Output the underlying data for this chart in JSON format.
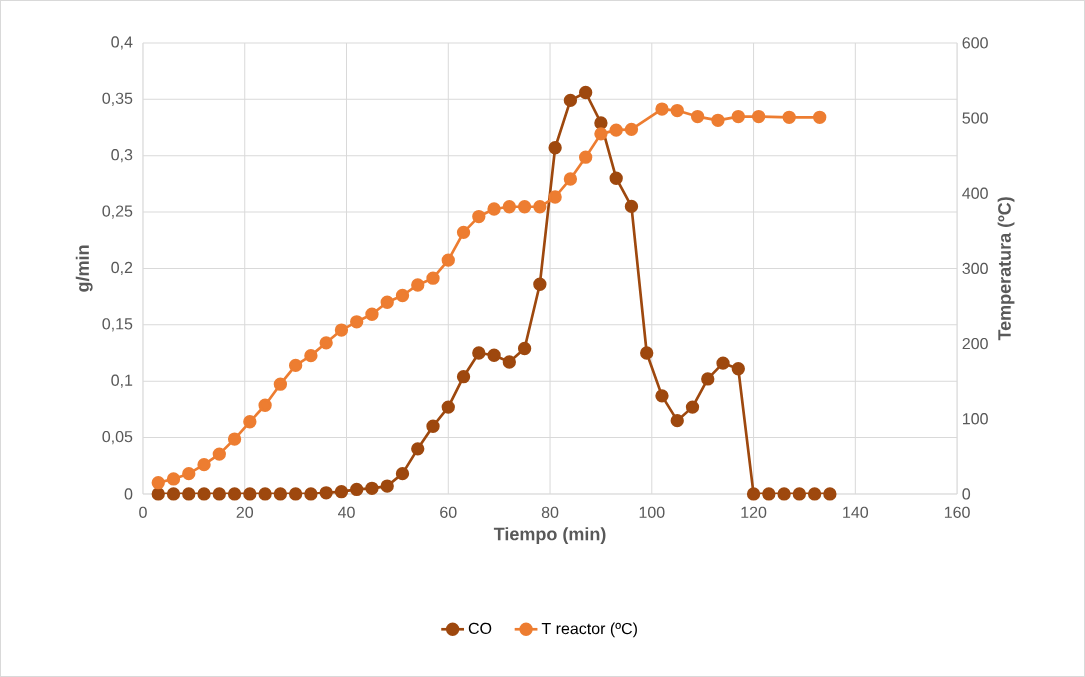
{
  "chart_data": {
    "type": "line",
    "xlabel": "Tiempo (min)",
    "ylabel": "g/min",
    "y2label": "Temperatura (ºC)",
    "xlim": [
      0,
      160
    ],
    "xticks": [
      0,
      20,
      40,
      60,
      80,
      100,
      120,
      140,
      160
    ],
    "ylim": [
      0,
      0.4
    ],
    "yticks": [
      {
        "value": 0,
        "label": "0"
      },
      {
        "value": 0.05,
        "label": "0,05"
      },
      {
        "value": 0.1,
        "label": "0,1"
      },
      {
        "value": 0.15,
        "label": "0,15"
      },
      {
        "value": 0.2,
        "label": "0,2"
      },
      {
        "value": 0.25,
        "label": "0,25"
      },
      {
        "value": 0.3,
        "label": "0,3"
      },
      {
        "value": 0.35,
        "label": "0,35"
      },
      {
        "value": 0.4,
        "label": "0,4"
      }
    ],
    "y2lim": [
      0,
      600
    ],
    "y2ticks": [
      0,
      100,
      200,
      300,
      400,
      500,
      600
    ],
    "grid": true,
    "legend": "bottom",
    "marker": "circle",
    "series": [
      {
        "name": "CO",
        "color": "#9e480e",
        "x": [
          3,
          6,
          9,
          12,
          15,
          18,
          21,
          24,
          27,
          30,
          33,
          36,
          39,
          42,
          45,
          48,
          51,
          54,
          57,
          60,
          63,
          66,
          69,
          72,
          75,
          78,
          81,
          84,
          87,
          90,
          93,
          96,
          99,
          102,
          105,
          108,
          111,
          114,
          117,
          120,
          123,
          126,
          129,
          132,
          135
        ],
        "values": [
          0,
          0,
          0,
          0,
          0,
          0,
          0,
          0,
          0,
          0,
          0,
          0.001,
          0.002,
          0.004,
          0.005,
          0.007,
          0.018,
          0.04,
          0.06,
          0.077,
          0.104,
          0.125,
          0.123,
          0.117,
          0.129,
          0.186,
          0.307,
          0.349,
          0.356,
          0.329,
          0.28,
          0.255,
          0.125,
          0.087,
          0.065,
          0.077,
          0.102,
          0.116,
          0.111,
          0,
          0,
          0,
          0,
          0,
          0
        ]
      },
      {
        "name": "T reactor (ºC)",
        "color": "#ed7d31",
        "axis": "y2",
        "x": [
          3,
          6,
          9,
          12,
          15,
          18,
          21,
          24,
          27,
          30,
          33,
          36,
          39,
          42,
          45,
          48,
          51,
          54,
          57,
          60,
          63,
          66,
          69,
          72,
          75,
          78,
          81,
          84,
          87,
          90,
          93,
          96,
          102,
          105,
          109,
          113,
          117,
          121,
          127,
          133
        ],
        "values": [
          15,
          20,
          27,
          39,
          53,
          73,
          96,
          118,
          146,
          171,
          184,
          201,
          218,
          229,
          239,
          255,
          264,
          278,
          287,
          311,
          348,
          369,
          379,
          382,
          382,
          382,
          395,
          419,
          448,
          479,
          484,
          485,
          512,
          510,
          502,
          497,
          502,
          502,
          501,
          501
        ]
      }
    ]
  }
}
